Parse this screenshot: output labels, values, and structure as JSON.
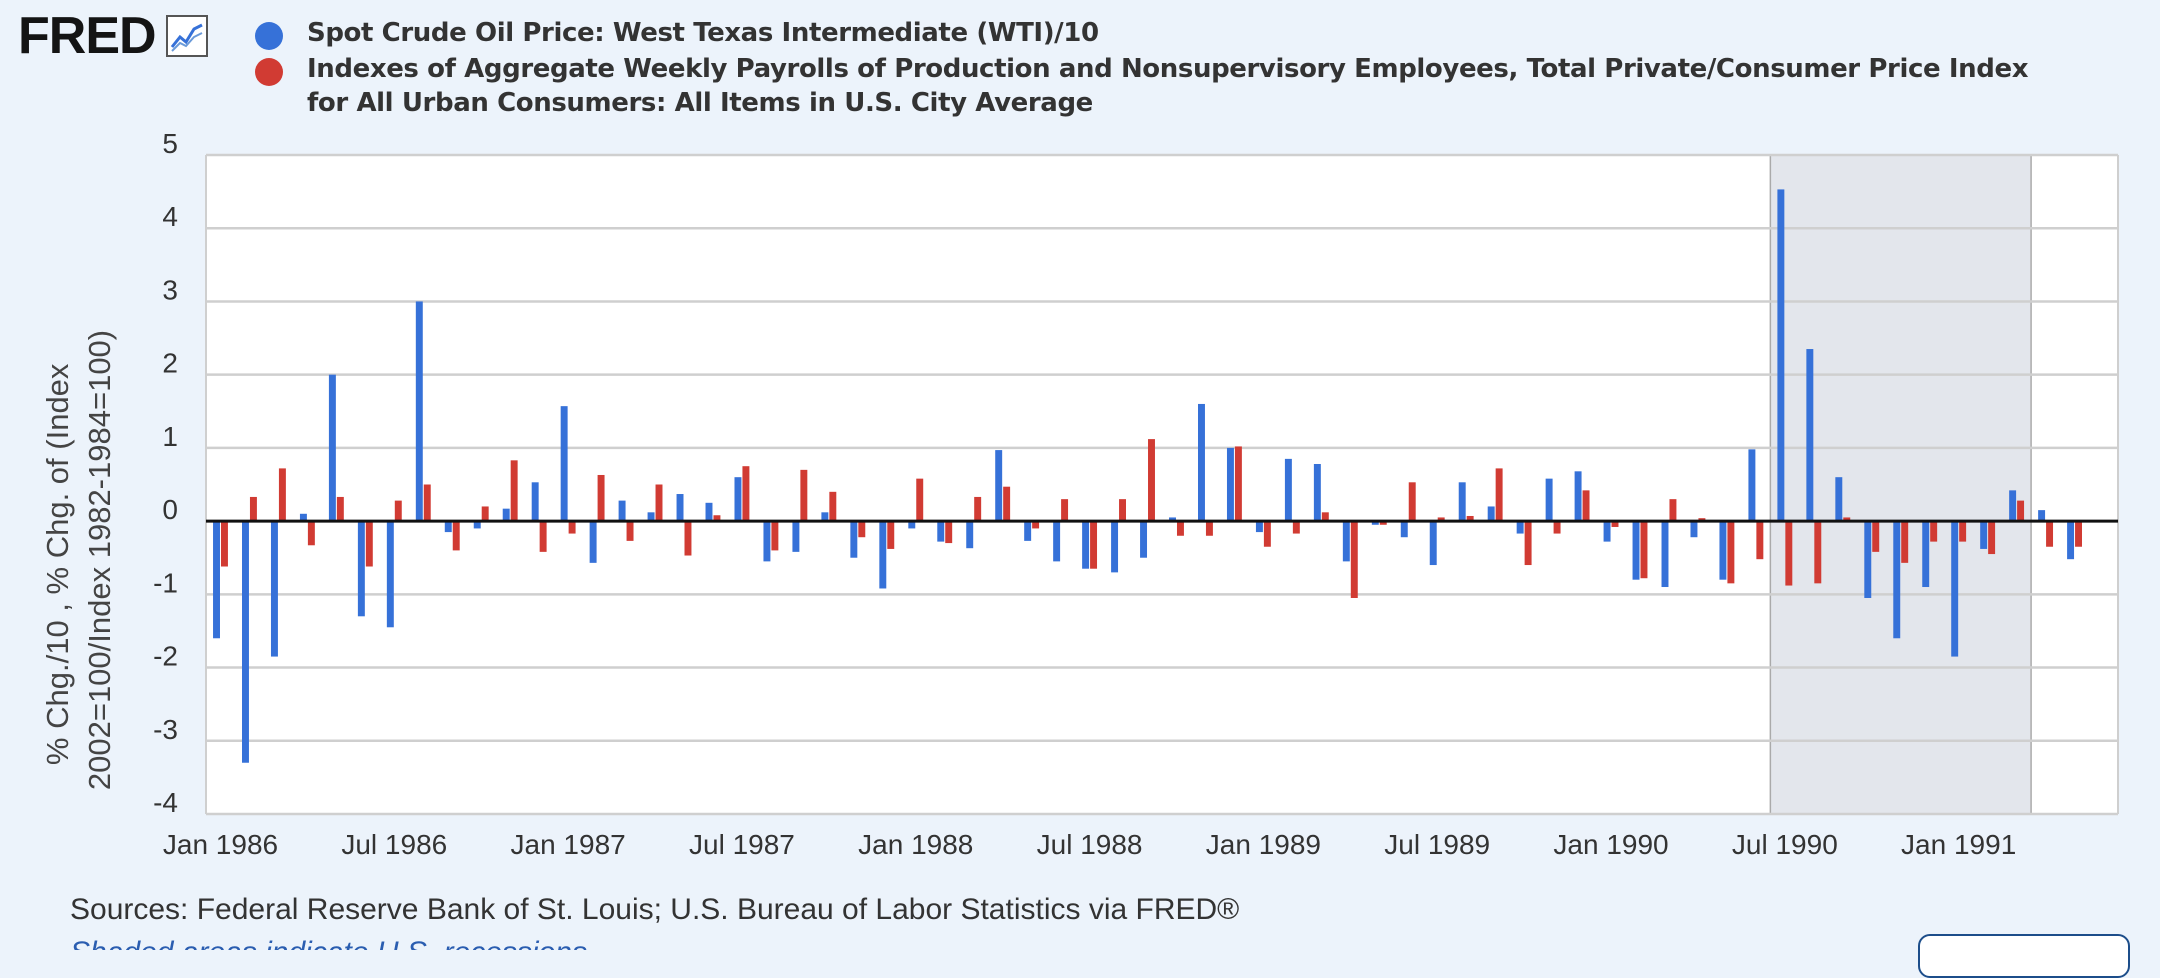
{
  "header": {
    "logo_text": "FRED",
    "logo_icon": "line-chart-icon"
  },
  "legend": [
    {
      "label": "Spot Crude Oil Price: West Texas Intermediate (WTI)/10",
      "color": "#3671d8"
    },
    {
      "label": "Indexes of Aggregate Weekly Payrolls of Production and Nonsupervisory Employees, Total Private/Consumer Price Index for All Urban Consumers: All Items in U.S. City Average",
      "color": "#d13b33"
    }
  ],
  "footer": {
    "sources": "Sources: Federal Reserve Bank of St. Louis; U.S. Bureau of Labor Statistics via FRED®",
    "note": "Shaded areas indicate U.S. recessions"
  },
  "chart_data": {
    "type": "bar",
    "ylabel": "% Chg./10 , % Chg. of (Index 2002=100/Index 1982-1984=100)",
    "ylabel_lines": [
      "% Chg./10 , % Chg. of (Index",
      "2002=100/Index 1982-1984=100)"
    ],
    "ylim": [
      -4,
      5
    ],
    "yticks": [
      5,
      4,
      3,
      2,
      1,
      0,
      -1,
      -2,
      -3,
      -4
    ],
    "grid": true,
    "x_start": "1986-01",
    "x_end": "1991-06",
    "xtick_labels": [
      {
        "label": "Jan 1986",
        "date": "1986-01"
      },
      {
        "label": "Jul 1986",
        "date": "1986-07"
      },
      {
        "label": "Jan 1987",
        "date": "1987-01"
      },
      {
        "label": "Jul 1987",
        "date": "1987-07"
      },
      {
        "label": "Jan 1988",
        "date": "1988-01"
      },
      {
        "label": "Jul 1988",
        "date": "1988-07"
      },
      {
        "label": "Jan 1989",
        "date": "1989-01"
      },
      {
        "label": "Jul 1989",
        "date": "1989-07"
      },
      {
        "label": "Jan 1990",
        "date": "1990-01"
      },
      {
        "label": "Jul 1990",
        "date": "1990-07"
      },
      {
        "label": "Jan 1991",
        "date": "1991-01"
      }
    ],
    "recession": {
      "start": "1990-07",
      "end": "1991-03"
    },
    "series": [
      {
        "name": "Spot Crude Oil Price: West Texas Intermediate (WTI)/10",
        "color": "#3671d8",
        "points": [
          [
            "1986-01",
            -1.6
          ],
          [
            "1986-02",
            -3.3
          ],
          [
            "1986-03",
            -1.85
          ],
          [
            "1986-04",
            0.1
          ],
          [
            "1986-05",
            2.0
          ],
          [
            "1986-06",
            -1.3
          ],
          [
            "1986-07",
            -1.45
          ],
          [
            "1986-08",
            3.0
          ],
          [
            "1986-09",
            -0.15
          ],
          [
            "1986-10",
            -0.1
          ],
          [
            "1986-11",
            0.17
          ],
          [
            "1986-12",
            0.53
          ],
          [
            "1987-01",
            1.57
          ],
          [
            "1987-02",
            -0.57
          ],
          [
            "1987-03",
            0.28
          ],
          [
            "1987-04",
            0.12
          ],
          [
            "1987-05",
            0.37
          ],
          [
            "1987-06",
            0.25
          ],
          [
            "1987-07",
            0.6
          ],
          [
            "1987-08",
            -0.55
          ],
          [
            "1987-09",
            -0.42
          ],
          [
            "1987-10",
            0.12
          ],
          [
            "1987-11",
            -0.5
          ],
          [
            "1987-12",
            -0.92
          ],
          [
            "1988-01",
            -0.1
          ],
          [
            "1988-02",
            -0.28
          ],
          [
            "1988-03",
            -0.37
          ],
          [
            "1988-04",
            0.97
          ],
          [
            "1988-05",
            -0.27
          ],
          [
            "1988-06",
            -0.55
          ],
          [
            "1988-07",
            -0.65
          ],
          [
            "1988-08",
            -0.7
          ],
          [
            "1988-09",
            -0.5
          ],
          [
            "1988-10",
            0.05
          ],
          [
            "1988-11",
            1.6
          ],
          [
            "1988-12",
            1.0
          ],
          [
            "1989-01",
            -0.15
          ],
          [
            "1989-02",
            0.85
          ],
          [
            "1989-03",
            0.78
          ],
          [
            "1989-04",
            -0.55
          ],
          [
            "1989-05",
            -0.05
          ],
          [
            "1989-06",
            -0.22
          ],
          [
            "1989-07",
            -0.6
          ],
          [
            "1989-08",
            0.53
          ],
          [
            "1989-09",
            0.2
          ],
          [
            "1989-10",
            -0.17
          ],
          [
            "1989-11",
            0.58
          ],
          [
            "1989-12",
            0.68
          ],
          [
            "1990-01",
            -0.28
          ],
          [
            "1990-02",
            -0.8
          ],
          [
            "1990-03",
            -0.9
          ],
          [
            "1990-04",
            -0.22
          ],
          [
            "1990-05",
            -0.8
          ],
          [
            "1990-06",
            0.98
          ],
          [
            "1990-07",
            4.53
          ],
          [
            "1990-08",
            2.35
          ],
          [
            "1990-09",
            0.6
          ],
          [
            "1990-10",
            -1.05
          ],
          [
            "1990-11",
            -1.6
          ],
          [
            "1990-12",
            -0.9
          ],
          [
            "1991-01",
            -1.85
          ],
          [
            "1991-02",
            -0.38
          ],
          [
            "1991-03",
            0.42
          ],
          [
            "1991-04",
            0.15
          ],
          [
            "1991-05",
            -0.52
          ]
        ]
      },
      {
        "name": "Indexes of Aggregate Weekly Payrolls of Production and Nonsupervisory Employees, Total Private/Consumer Price Index for All Urban Consumers: All Items in U.S. City Average",
        "color": "#d13b33",
        "points": [
          [
            "1986-01",
            -0.62
          ],
          [
            "1986-02",
            0.33
          ],
          [
            "1986-03",
            0.72
          ],
          [
            "1986-04",
            -0.33
          ],
          [
            "1986-05",
            0.33
          ],
          [
            "1986-06",
            -0.62
          ],
          [
            "1986-07",
            0.28
          ],
          [
            "1986-08",
            0.5
          ],
          [
            "1986-09",
            -0.4
          ],
          [
            "1986-10",
            0.2
          ],
          [
            "1986-11",
            0.83
          ],
          [
            "1986-12",
            -0.42
          ],
          [
            "1987-01",
            -0.17
          ],
          [
            "1987-02",
            0.63
          ],
          [
            "1987-03",
            -0.27
          ],
          [
            "1987-04",
            0.5
          ],
          [
            "1987-05",
            -0.47
          ],
          [
            "1987-06",
            0.08
          ],
          [
            "1987-07",
            0.75
          ],
          [
            "1987-08",
            -0.4
          ],
          [
            "1987-09",
            0.7
          ],
          [
            "1987-10",
            0.4
          ],
          [
            "1987-11",
            -0.22
          ],
          [
            "1987-12",
            -0.38
          ],
          [
            "1988-01",
            0.58
          ],
          [
            "1988-02",
            -0.3
          ],
          [
            "1988-03",
            0.33
          ],
          [
            "1988-04",
            0.47
          ],
          [
            "1988-05",
            -0.1
          ],
          [
            "1988-06",
            0.3
          ],
          [
            "1988-07",
            -0.65
          ],
          [
            "1988-08",
            0.3
          ],
          [
            "1988-09",
            1.12
          ],
          [
            "1988-10",
            -0.2
          ],
          [
            "1988-11",
            -0.2
          ],
          [
            "1988-12",
            1.02
          ],
          [
            "1989-01",
            -0.35
          ],
          [
            "1989-02",
            -0.17
          ],
          [
            "1989-03",
            0.12
          ],
          [
            "1989-04",
            -1.05
          ],
          [
            "1989-05",
            -0.05
          ],
          [
            "1989-06",
            0.53
          ],
          [
            "1989-07",
            0.05
          ],
          [
            "1989-08",
            0.07
          ],
          [
            "1989-09",
            0.72
          ],
          [
            "1989-10",
            -0.6
          ],
          [
            "1989-11",
            -0.17
          ],
          [
            "1989-12",
            0.42
          ],
          [
            "1990-01",
            -0.08
          ],
          [
            "1990-02",
            -0.78
          ],
          [
            "1990-03",
            0.3
          ],
          [
            "1990-04",
            0.04
          ],
          [
            "1990-05",
            -0.85
          ],
          [
            "1990-06",
            -0.52
          ],
          [
            "1990-07",
            -0.88
          ],
          [
            "1990-08",
            -0.85
          ],
          [
            "1990-09",
            0.05
          ],
          [
            "1990-10",
            -0.42
          ],
          [
            "1990-11",
            -0.57
          ],
          [
            "1990-12",
            -0.28
          ],
          [
            "1991-01",
            -0.28
          ],
          [
            "1991-02",
            -0.45
          ],
          [
            "1991-03",
            0.28
          ],
          [
            "1991-04",
            -0.35
          ],
          [
            "1991-05",
            -0.35
          ]
        ]
      }
    ]
  }
}
